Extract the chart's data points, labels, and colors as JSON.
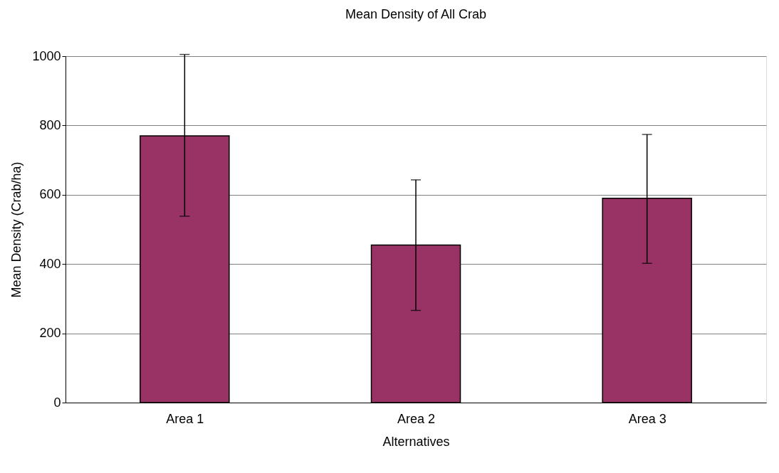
{
  "chart_data": {
    "type": "bar",
    "title": "Mean Density of All Crab",
    "xlabel": "Alternatives",
    "ylabel": "Mean Density (Crab/ha)",
    "categories": [
      "Area 1",
      "Area 2",
      "Area 3"
    ],
    "series": [
      {
        "color": "#993366",
        "values": [
          770,
          455,
          590
        ],
        "errors": [
          [
            538,
            1005
          ],
          [
            266,
            643
          ],
          [
            402,
            774
          ]
        ]
      }
    ],
    "ylim": [
      0,
      1000
    ],
    "yticks": [
      0,
      200,
      400,
      600,
      800,
      1000
    ],
    "grid": "y"
  }
}
